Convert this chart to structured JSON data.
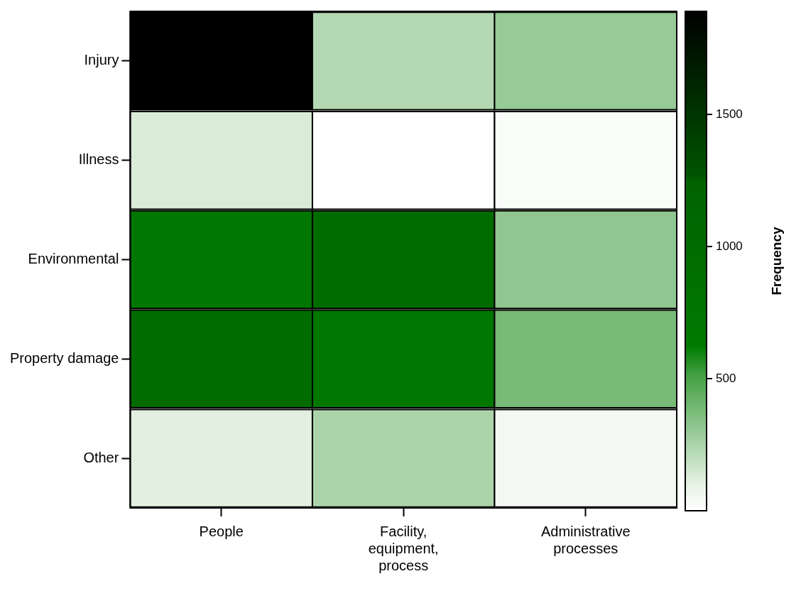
{
  "chart_data": {
    "type": "heatmap",
    "categories": [
      "People",
      "Facility, equipment, process",
      "Administrative processes"
    ],
    "y_categories": [
      "Injury",
      "Illness",
      "Environmental",
      "Property damage",
      "Other"
    ],
    "cells": [
      [
        1890,
        230,
        300
      ],
      [
        130,
        0,
        20
      ],
      [
        700,
        1000,
        320
      ],
      [
        1000,
        700,
        380
      ],
      [
        110,
        250,
        50
      ]
    ],
    "clim": [
      0,
      1890
    ],
    "cticks": [
      500,
      1000,
      1500
    ],
    "clabel": "Frequency"
  }
}
